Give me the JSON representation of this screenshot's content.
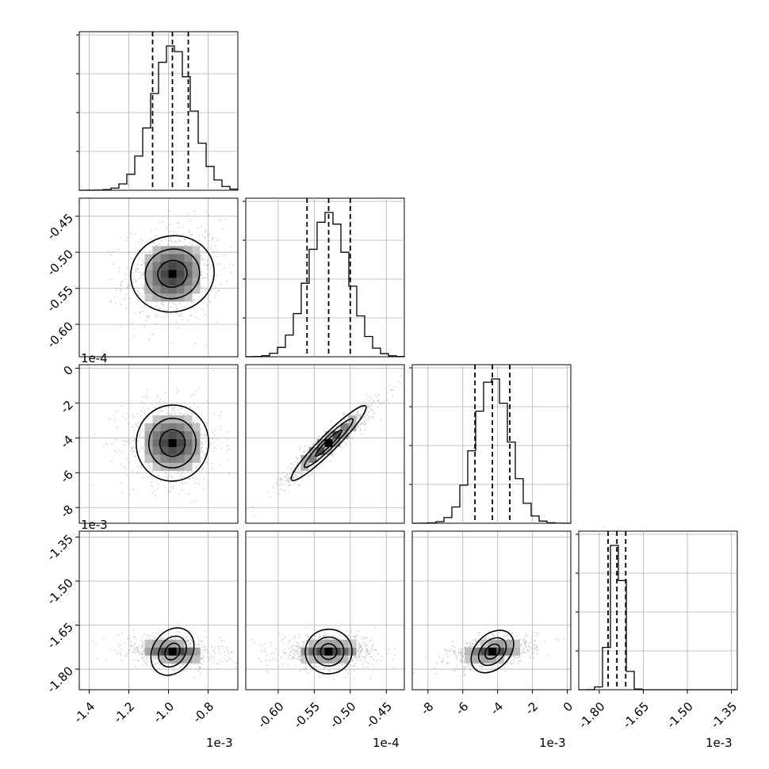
{
  "chart_data": {
    "type": "corner",
    "grid": true,
    "dimensions": [
      {
        "range": [
          -1.45,
          -0.65
        ],
        "ticks": [
          "-1.4",
          "-1.2",
          "-1.0",
          "-0.8"
        ],
        "tick_values": [
          -1.4,
          -1.2,
          -1.0,
          -0.8
        ],
        "offset": "1e-3",
        "mean": -0.98,
        "sd": 0.1,
        "quantiles": [
          -1.08,
          -0.98,
          -0.9
        ]
      },
      {
        "range": [
          -0.645,
          -0.425
        ],
        "ticks": [
          "-0.60",
          "-0.55",
          "-0.50",
          "-0.45"
        ],
        "tick_values": [
          -0.6,
          -0.55,
          -0.5,
          -0.45
        ],
        "offset": "1e-4",
        "mean": -0.53,
        "sd": 0.028,
        "quantiles": [
          -0.56,
          -0.53,
          -0.5
        ]
      },
      {
        "range": [
          -8.9,
          0.2
        ],
        "ticks": [
          "-8",
          "-6",
          "-4",
          "-2",
          "0"
        ],
        "tick_values": [
          -8,
          -6,
          -4,
          -2,
          0
        ],
        "offset": "1e-3",
        "mean": -4.3,
        "sd": 1.0,
        "quantiles": [
          -5.3,
          -4.3,
          -3.3
        ]
      },
      {
        "range": [
          -1.87,
          -1.33
        ],
        "ticks": [
          "-1.80",
          "-1.65",
          "-1.50",
          "-1.35"
        ],
        "tick_values": [
          -1.8,
          -1.65,
          -1.5,
          -1.35
        ],
        "offset": "1e-3",
        "mean": -1.74,
        "sd": 0.022,
        "quantiles": [
          -1.77,
          -1.74,
          -1.71
        ]
      }
    ],
    "correlations": [
      {
        "pair": [
          1,
          0
        ],
        "rho": 0.1
      },
      {
        "pair": [
          2,
          0
        ],
        "rho": -0.05
      },
      {
        "pair": [
          2,
          1
        ],
        "rho": 0.95
      },
      {
        "pair": [
          3,
          0
        ],
        "rho": -0.25
      },
      {
        "pair": [
          3,
          1
        ],
        "rho": 0.05
      },
      {
        "pair": [
          3,
          2
        ],
        "rho": 0.35
      }
    ],
    "colors": {
      "line": "#000000",
      "points": "#9a9a9a",
      "grid": "#b0b0b0"
    }
  }
}
